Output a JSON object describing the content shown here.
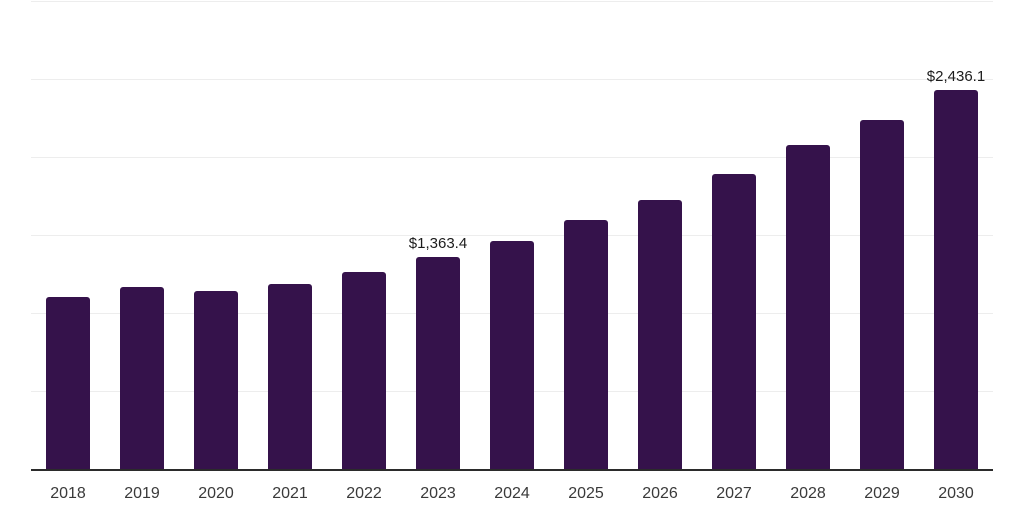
{
  "chart_data": {
    "type": "bar",
    "title": "",
    "xlabel": "",
    "ylabel": "",
    "categories": [
      "2018",
      "2019",
      "2020",
      "2021",
      "2022",
      "2023",
      "2024",
      "2025",
      "2026",
      "2027",
      "2028",
      "2029",
      "2030"
    ],
    "values": [
      1107,
      1173,
      1146,
      1191,
      1271,
      1363.4,
      1469,
      1600,
      1731,
      1898,
      2083,
      2244,
      2436.1
    ],
    "labeled_points": [
      {
        "category": "2023",
        "label": "$1,363.4"
      },
      {
        "category": "2030",
        "label": "$2,436.1"
      }
    ],
    "ylim": [
      0,
      3000
    ],
    "grid": true,
    "gridline_interval": 500,
    "legend": false,
    "y_tick_labels_visible": false,
    "colors": {
      "bar": "#35124b",
      "gridline": "#ededed",
      "axis_line": "#2b2b2b",
      "tick_label": "#3a3a3a",
      "value_label": "#1c1c1c",
      "background": "#ffffff"
    }
  }
}
